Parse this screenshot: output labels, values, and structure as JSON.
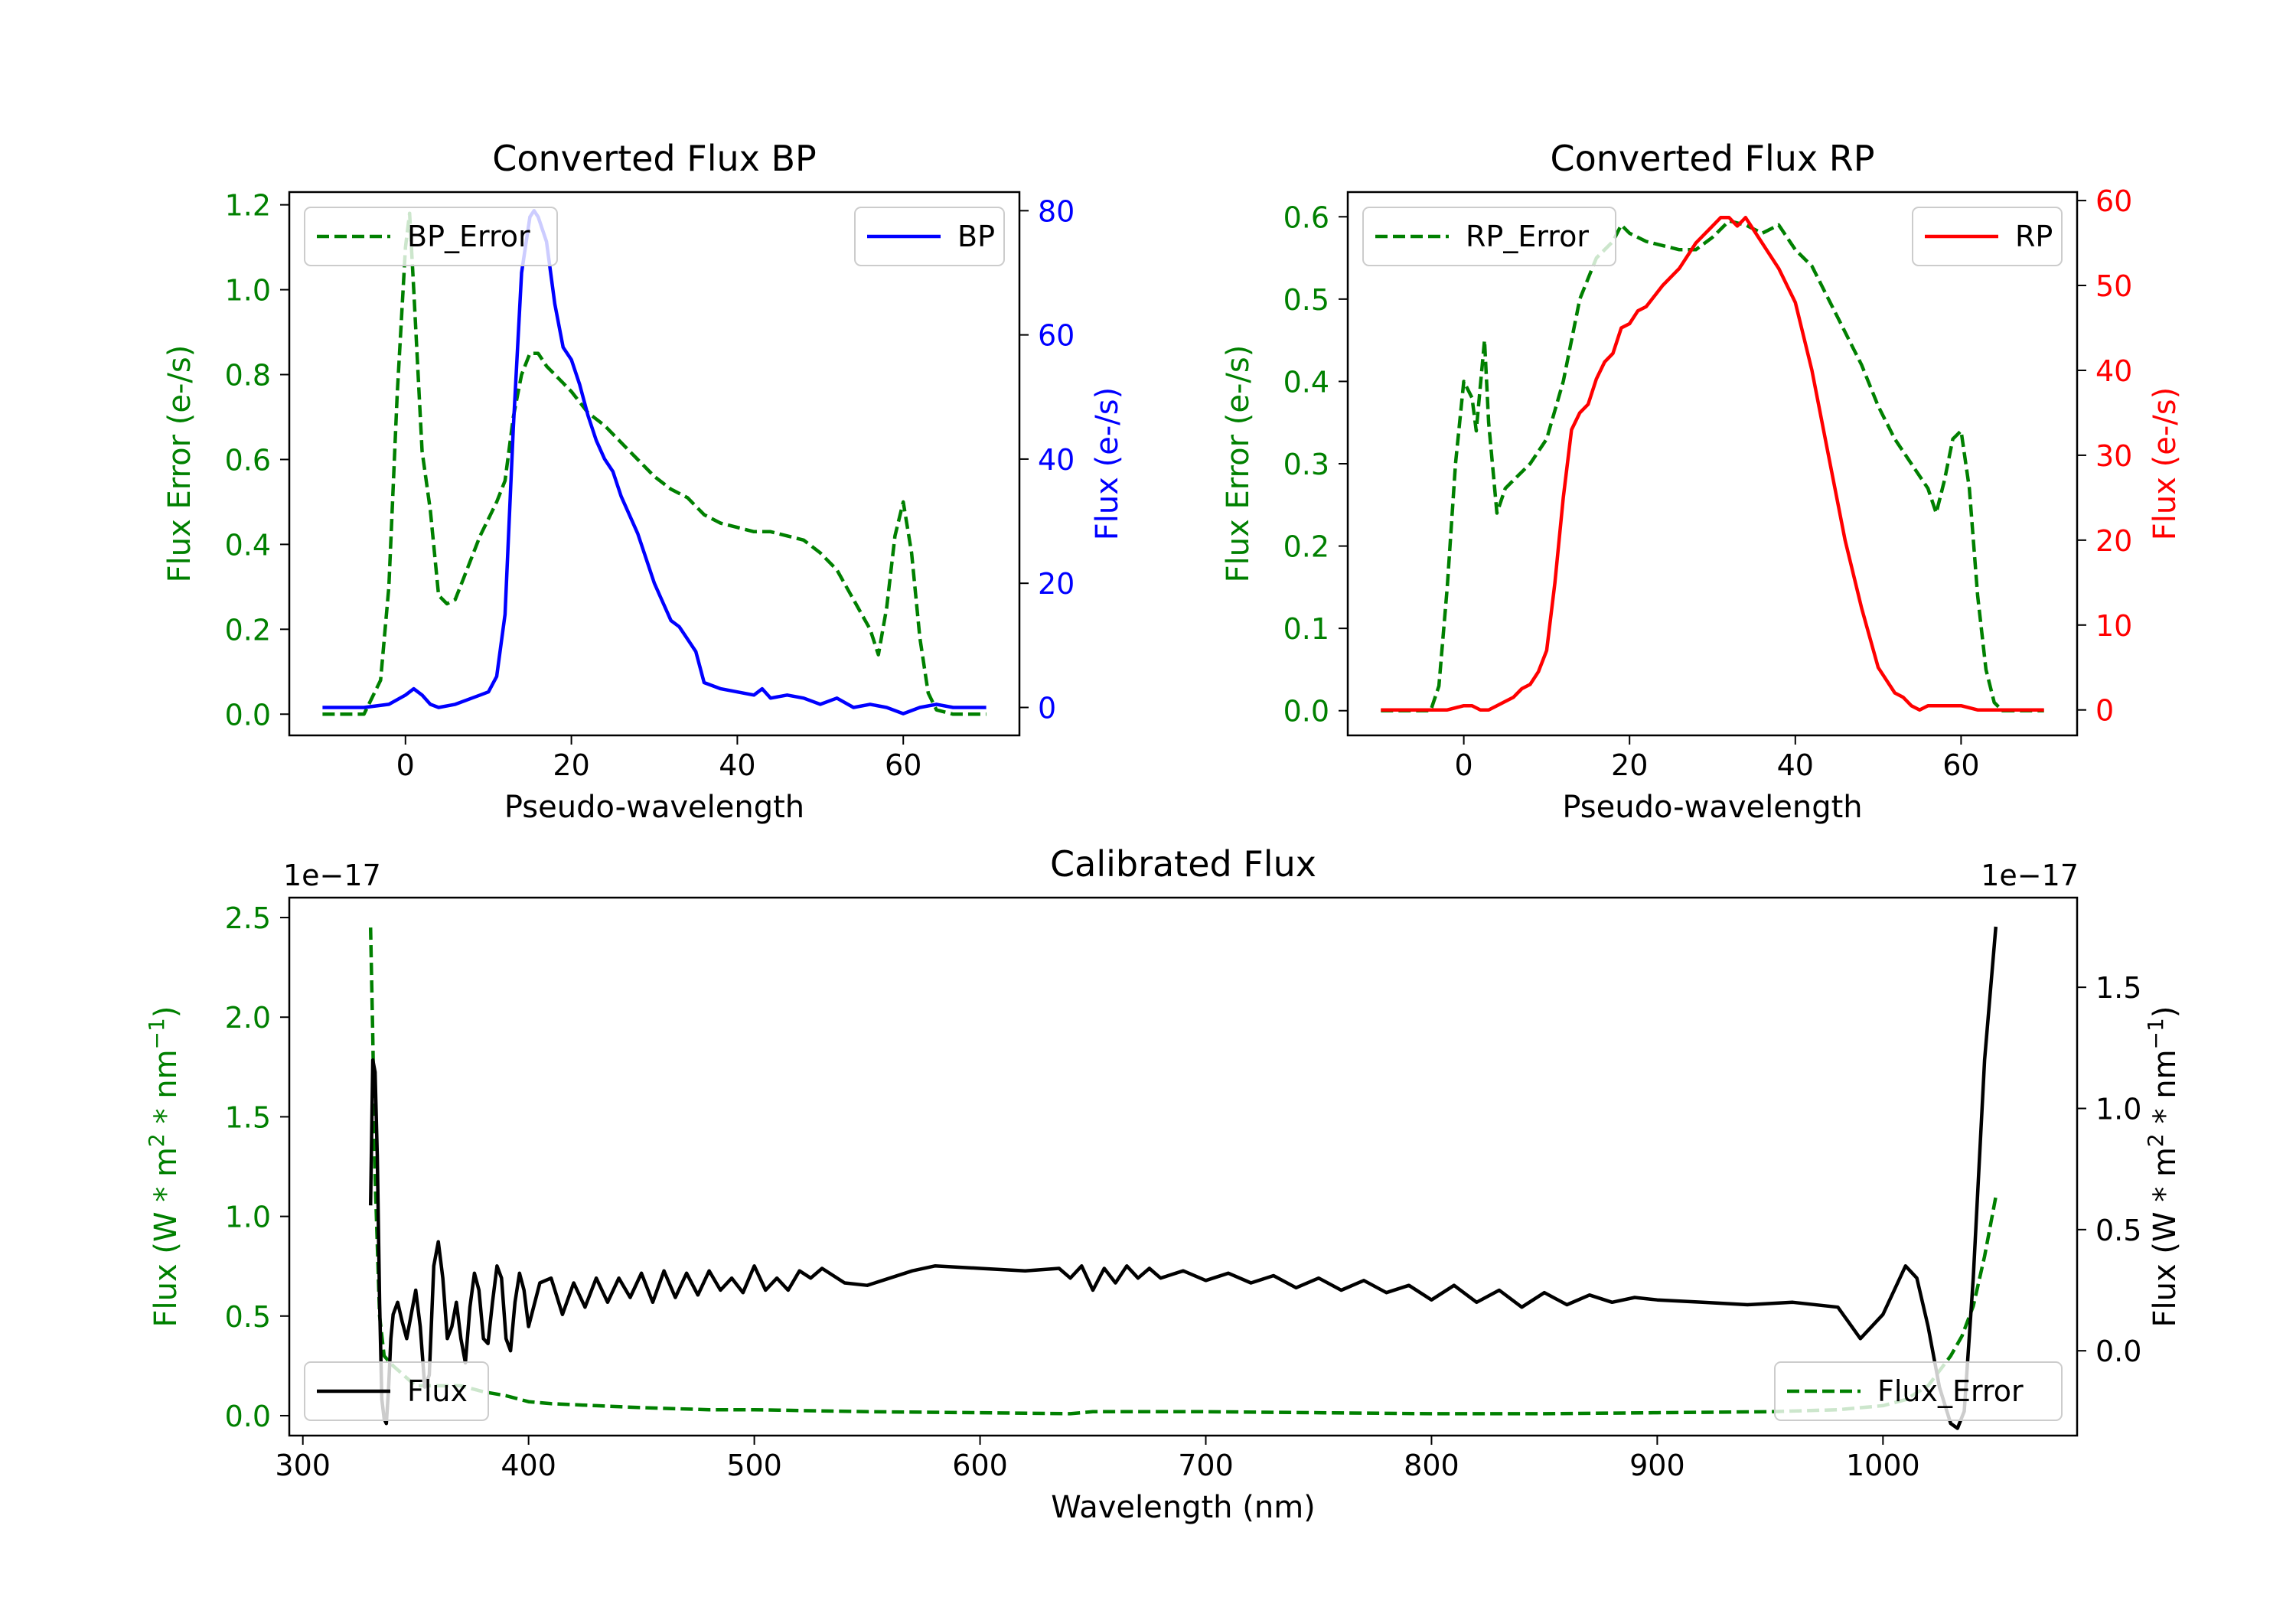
{
  "chart_data": [
    {
      "type": "line",
      "id": "bp",
      "title": "Converted Flux BP",
      "xlabel": "Pseudo-wavelength",
      "xlim": [
        -14,
        74
      ],
      "xticks": [
        0,
        20,
        40,
        60
      ],
      "left_axis": {
        "label": "Flux Error (e-/s)",
        "color": "#008000",
        "ylim": [
          -0.05,
          1.23
        ],
        "ticks": [
          0.0,
          0.2,
          0.4,
          0.6,
          0.8,
          1.0,
          1.2
        ],
        "tick_labels": [
          "0.0",
          "0.2",
          "0.4",
          "0.6",
          "0.8",
          "1.0",
          "1.2"
        ]
      },
      "right_axis": {
        "label": "Flux (e-/s)",
        "color": "#0000ff",
        "ylim": [
          -4.5,
          83
        ],
        "ticks": [
          0,
          20,
          40,
          60,
          80
        ],
        "tick_labels": [
          "0",
          "20",
          "40",
          "60",
          "80"
        ]
      },
      "series": [
        {
          "name": "BP_Error",
          "axis": "left",
          "color": "#008000",
          "dashed": true,
          "x": [
            -10,
            -5,
            -3,
            -2,
            -1,
            0,
            0.5,
            1,
            2,
            3,
            4,
            5,
            6,
            7,
            8,
            9,
            10,
            11,
            12,
            13,
            14,
            15,
            16,
            17,
            18,
            19,
            20,
            22,
            24,
            26,
            28,
            30,
            32,
            34,
            36,
            38,
            40,
            42,
            44,
            46,
            48,
            50,
            52,
            54,
            56,
            57,
            58,
            59,
            60,
            61,
            62,
            63,
            64,
            66,
            70
          ],
          "y": [
            0.0,
            0.0,
            0.08,
            0.3,
            0.75,
            1.1,
            1.18,
            1.0,
            0.62,
            0.48,
            0.28,
            0.26,
            0.27,
            0.32,
            0.37,
            0.42,
            0.46,
            0.5,
            0.55,
            0.7,
            0.8,
            0.85,
            0.85,
            0.82,
            0.8,
            0.78,
            0.76,
            0.71,
            0.68,
            0.64,
            0.6,
            0.56,
            0.53,
            0.51,
            0.47,
            0.45,
            0.44,
            0.43,
            0.43,
            0.42,
            0.41,
            0.38,
            0.34,
            0.27,
            0.2,
            0.14,
            0.25,
            0.42,
            0.5,
            0.38,
            0.18,
            0.05,
            0.01,
            0.0,
            0.0
          ]
        },
        {
          "name": "BP",
          "axis": "right",
          "color": "#0000ff",
          "dashed": false,
          "x": [
            -10,
            -5,
            -2,
            0,
            1,
            2,
            3,
            4,
            6,
            8,
            9,
            10,
            11,
            12,
            13,
            14,
            15,
            15.5,
            16,
            17,
            18,
            19,
            20,
            21,
            22,
            23,
            24,
            25,
            26,
            28,
            30,
            31,
            32,
            33,
            34,
            35,
            36,
            38,
            40,
            42,
            43,
            44,
            46,
            48,
            50,
            52,
            54,
            56,
            58,
            60,
            62,
            64,
            66,
            70
          ],
          "y": [
            0,
            0,
            0.5,
            2,
            3,
            2,
            0.5,
            0,
            0.5,
            1.5,
            2,
            2.5,
            5,
            15,
            45,
            70,
            79,
            80,
            79,
            75,
            65,
            58,
            56,
            52,
            47,
            43,
            40,
            38,
            34,
            28,
            20,
            17,
            14,
            13,
            11,
            9,
            4,
            3,
            2.5,
            2,
            3,
            1.5,
            2,
            1.5,
            0.5,
            1.5,
            0,
            0.5,
            0,
            -1,
            0,
            0.5,
            0,
            0
          ]
        }
      ],
      "legend": [
        {
          "label": "BP_Error",
          "series": "BP_Error",
          "placement": "upper left"
        },
        {
          "label": "BP",
          "series": "BP",
          "placement": "upper right"
        }
      ]
    },
    {
      "type": "line",
      "id": "rp",
      "title": "Converted Flux RP",
      "xlabel": "Pseudo-wavelength",
      "xlim": [
        -14,
        74
      ],
      "xticks": [
        0,
        20,
        40,
        60
      ],
      "left_axis": {
        "label": "Flux Error (e-/s)",
        "color": "#008000",
        "ylim": [
          -0.03,
          0.63
        ],
        "ticks": [
          0.0,
          0.1,
          0.2,
          0.3,
          0.4,
          0.5,
          0.6
        ],
        "tick_labels": [
          "0.0",
          "0.1",
          "0.2",
          "0.3",
          "0.4",
          "0.5",
          "0.6"
        ]
      },
      "right_axis": {
        "label": "Flux (e-/s)",
        "color": "#ff0000",
        "ylim": [
          -3,
          61
        ],
        "ticks": [
          0,
          10,
          20,
          30,
          40,
          50,
          60
        ],
        "tick_labels": [
          "0",
          "10",
          "20",
          "30",
          "40",
          "50",
          "60"
        ]
      },
      "series": [
        {
          "name": "RP_Error",
          "axis": "left",
          "color": "#008000",
          "dashed": true,
          "x": [
            -10,
            -4,
            -3,
            -2,
            -1,
            0,
            1,
            1.5,
            2.5,
            3,
            4,
            5,
            6,
            8,
            10,
            12,
            13,
            14,
            16,
            18,
            19,
            20,
            22,
            24,
            26,
            28,
            30,
            32,
            34,
            36,
            38,
            40,
            42,
            44,
            46,
            48,
            50,
            52,
            54,
            56,
            57,
            58,
            59,
            60,
            61,
            62,
            63,
            64,
            65,
            70
          ],
          "y": [
            0.0,
            0.0,
            0.03,
            0.15,
            0.3,
            0.4,
            0.38,
            0.34,
            0.45,
            0.35,
            0.24,
            0.27,
            0.28,
            0.3,
            0.33,
            0.4,
            0.45,
            0.5,
            0.55,
            0.57,
            0.59,
            0.58,
            0.57,
            0.565,
            0.56,
            0.56,
            0.575,
            0.595,
            0.59,
            0.58,
            0.59,
            0.56,
            0.54,
            0.5,
            0.46,
            0.42,
            0.37,
            0.33,
            0.3,
            0.27,
            0.24,
            0.28,
            0.33,
            0.34,
            0.27,
            0.14,
            0.05,
            0.01,
            0.0,
            0.0
          ]
        },
        {
          "name": "RP",
          "axis": "right",
          "color": "#ff0000",
          "dashed": false,
          "x": [
            -10,
            -5,
            -2,
            0,
            1,
            2,
            3,
            4,
            5,
            6,
            7,
            8,
            9,
            10,
            11,
            12,
            13,
            14,
            15,
            16,
            17,
            18,
            19,
            20,
            21,
            22,
            24,
            26,
            28,
            30,
            31,
            32,
            33,
            34,
            36,
            38,
            40,
            42,
            44,
            46,
            48,
            50,
            52,
            53,
            54,
            55,
            56,
            58,
            60,
            62,
            64,
            66,
            70
          ],
          "y": [
            0,
            0,
            0,
            0.5,
            0.5,
            0,
            0,
            0.5,
            1,
            1.5,
            2.5,
            3,
            4.5,
            7,
            15,
            25,
            33,
            35,
            36,
            39,
            41,
            42,
            45,
            45.5,
            47,
            47.5,
            50,
            52,
            55,
            57,
            58,
            58,
            57,
            58,
            55,
            52,
            48,
            40,
            30,
            20,
            12,
            5,
            2,
            1.5,
            0.5,
            0,
            0.5,
            0.5,
            0.5,
            0,
            0,
            0,
            0
          ]
        }
      ],
      "legend": [
        {
          "label": "RP_Error",
          "series": "RP_Error",
          "placement": "upper left"
        },
        {
          "label": "RP",
          "series": "RP",
          "placement": "upper right"
        }
      ]
    },
    {
      "type": "line",
      "id": "cal",
      "title": "Calibrated Flux",
      "xlabel": "Wavelength (nm)",
      "xlim": [
        294,
        1086
      ],
      "xticks": [
        300,
        400,
        500,
        600,
        700,
        800,
        900,
        1000
      ],
      "left_axis": {
        "label": "Flux (W * m2 * nm−1)",
        "label_base": "Flux (W * m",
        "label_exp1": "2",
        "label_mid": " * nm",
        "label_exp2": "−1",
        "label_end": ")",
        "color": "#008000",
        "offset_text": "1e−17",
        "ylim": [
          -0.1,
          2.6
        ],
        "ticks": [
          0.0,
          0.5,
          1.0,
          1.5,
          2.0,
          2.5
        ],
        "tick_labels": [
          "0.0",
          "0.5",
          "1.0",
          "1.5",
          "2.0",
          "2.5"
        ]
      },
      "right_axis": {
        "label": "Flux (W * m2 * nm−1)",
        "label_base": "Flux (W * m",
        "label_exp1": "2",
        "label_mid": " * nm",
        "label_exp2": "−1",
        "label_end": ")",
        "color": "#000000",
        "offset_text": "1e−17",
        "ylim": [
          -0.35,
          1.87
        ],
        "ticks": [
          0.0,
          0.5,
          1.0,
          1.5
        ],
        "tick_labels": [
          "0.0",
          "0.5",
          "1.0",
          "1.5"
        ]
      },
      "series": [
        {
          "name": "Flux_Error",
          "axis": "left",
          "color": "#008000",
          "dashed": true,
          "x": [
            330,
            331,
            332,
            334,
            336,
            340,
            345,
            350,
            360,
            370,
            380,
            390,
            400,
            410,
            430,
            450,
            480,
            500,
            550,
            600,
            640,
            650,
            700,
            750,
            800,
            850,
            900,
            950,
            980,
            1000,
            1010,
            1020,
            1030,
            1035,
            1040,
            1045,
            1050
          ],
          "y": [
            2.45,
            1.9,
            1.2,
            0.5,
            0.3,
            0.25,
            0.2,
            0.15,
            0.15,
            0.15,
            0.12,
            0.1,
            0.07,
            0.06,
            0.05,
            0.04,
            0.03,
            0.03,
            0.02,
            0.015,
            0.01,
            0.02,
            0.02,
            0.015,
            0.01,
            0.01,
            0.015,
            0.02,
            0.03,
            0.05,
            0.08,
            0.15,
            0.3,
            0.4,
            0.55,
            0.8,
            1.1
          ]
        },
        {
          "name": "Flux",
          "axis": "right",
          "color": "#000000",
          "dashed": false,
          "x": [
            330,
            331,
            332,
            333,
            334,
            335,
            336,
            337,
            338,
            339,
            340,
            342,
            344,
            346,
            348,
            350,
            352,
            354,
            356,
            358,
            360,
            362,
            364,
            366,
            368,
            370,
            372,
            374,
            376,
            378,
            380,
            382,
            384,
            386,
            388,
            390,
            392,
            394,
            396,
            398,
            400,
            405,
            410,
            415,
            420,
            425,
            430,
            435,
            440,
            445,
            450,
            455,
            460,
            465,
            470,
            475,
            480,
            485,
            490,
            495,
            500,
            505,
            510,
            515,
            520,
            525,
            530,
            540,
            550,
            560,
            570,
            580,
            600,
            620,
            635,
            640,
            645,
            650,
            655,
            660,
            665,
            670,
            675,
            680,
            690,
            700,
            710,
            720,
            730,
            740,
            750,
            760,
            770,
            780,
            790,
            800,
            810,
            820,
            830,
            840,
            850,
            860,
            870,
            880,
            890,
            900,
            920,
            940,
            960,
            980,
            990,
            1000,
            1010,
            1015,
            1020,
            1025,
            1030,
            1033,
            1036,
            1040,
            1045,
            1050
          ],
          "y": [
            0.6,
            1.2,
            1.15,
            0.8,
            0.2,
            -0.2,
            -0.28,
            -0.3,
            -0.15,
            0.05,
            0.15,
            0.2,
            0.12,
            0.05,
            0.15,
            0.25,
            0.1,
            -0.15,
            -0.1,
            0.35,
            0.45,
            0.3,
            0.05,
            0.1,
            0.2,
            0.05,
            -0.05,
            0.18,
            0.32,
            0.25,
            0.05,
            0.03,
            0.2,
            0.35,
            0.3,
            0.05,
            0.0,
            0.2,
            0.32,
            0.25,
            0.1,
            0.28,
            0.3,
            0.15,
            0.28,
            0.18,
            0.3,
            0.2,
            0.3,
            0.22,
            0.32,
            0.2,
            0.33,
            0.22,
            0.32,
            0.23,
            0.33,
            0.25,
            0.3,
            0.24,
            0.35,
            0.25,
            0.3,
            0.25,
            0.33,
            0.3,
            0.34,
            0.28,
            0.27,
            0.3,
            0.33,
            0.35,
            0.34,
            0.33,
            0.34,
            0.3,
            0.35,
            0.25,
            0.34,
            0.28,
            0.35,
            0.3,
            0.34,
            0.3,
            0.33,
            0.29,
            0.32,
            0.28,
            0.31,
            0.26,
            0.3,
            0.25,
            0.29,
            0.24,
            0.27,
            0.21,
            0.27,
            0.2,
            0.25,
            0.18,
            0.24,
            0.19,
            0.23,
            0.2,
            0.22,
            0.21,
            0.2,
            0.19,
            0.2,
            0.18,
            0.05,
            0.15,
            0.35,
            0.3,
            0.1,
            -0.15,
            -0.3,
            -0.32,
            -0.25,
            0.3,
            1.2,
            1.75
          ]
        }
      ],
      "legend": [
        {
          "label": "Flux",
          "series": "Flux",
          "placement": "lower left"
        },
        {
          "label": "Flux_Error",
          "series": "Flux_Error",
          "placement": "lower right"
        }
      ]
    }
  ]
}
